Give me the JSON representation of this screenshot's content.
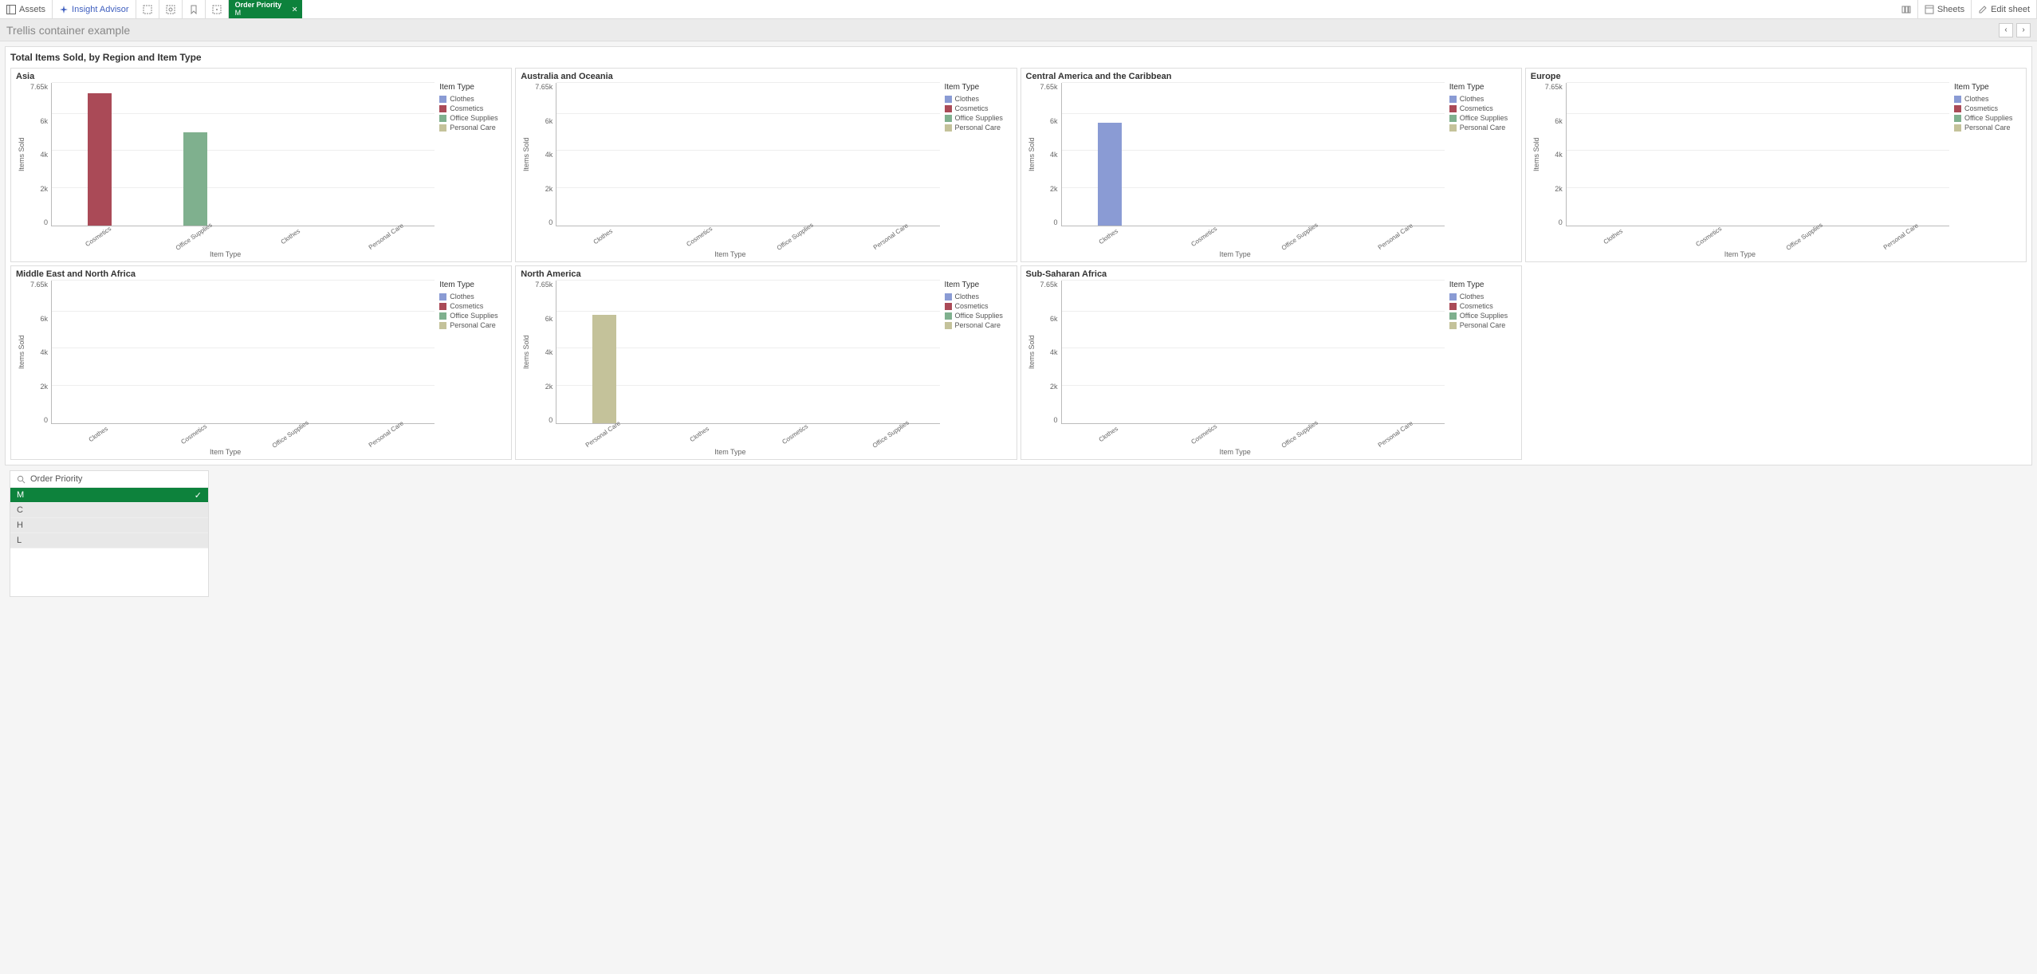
{
  "toolbar": {
    "assets_label": "Assets",
    "insight_label": "Insight Advisor",
    "sheets_label": "Sheets",
    "edit_label": "Edit sheet",
    "filter_tab": {
      "title": "Order Priority",
      "value": "M"
    }
  },
  "sheet": {
    "title": "Trellis container example"
  },
  "trellis": {
    "title": "Total Items Sold, by Region and Item Type",
    "yaxis_label": "Items Sold",
    "xaxis_label": "Item Type",
    "ymax": 7650,
    "yticks": [
      "7.65k",
      "6k",
      "4k",
      "2k",
      "0"
    ],
    "ytick_values": [
      7650,
      6000,
      4000,
      2000,
      0
    ],
    "legend_title": "Item Type",
    "legend_items": [
      {
        "label": "Clothes",
        "color": "#8a9bd4"
      },
      {
        "label": "Cosmetics",
        "color": "#aa4a57"
      },
      {
        "label": "Office Supplies",
        "color": "#7fb08e"
      },
      {
        "label": "Personal Care",
        "color": "#c4c29a"
      }
    ],
    "panels": [
      {
        "title": "Asia",
        "categories": [
          "Cosmetics",
          "Office Supplies",
          "Clothes",
          "Personal Care"
        ],
        "bars": [
          {
            "category": "Cosmetics",
            "value": 7100,
            "color": "#aa4a57"
          },
          {
            "category": "Office Supplies",
            "value": 5000,
            "color": "#7fb08e"
          }
        ]
      },
      {
        "title": "Australia and Oceania",
        "categories": [
          "Clothes",
          "Cosmetics",
          "Office Supplies",
          "Personal Care"
        ],
        "bars": []
      },
      {
        "title": "Central America and the Caribbean",
        "categories": [
          "Clothes",
          "Cosmetics",
          "Office Supplies",
          "Personal Care"
        ],
        "bars": [
          {
            "category": "Clothes",
            "value": 5500,
            "color": "#8a9bd4"
          }
        ]
      },
      {
        "title": "Europe",
        "categories": [
          "Clothes",
          "Cosmetics",
          "Office Supplies",
          "Personal Care"
        ],
        "bars": []
      },
      {
        "title": "Middle East and North Africa",
        "categories": [
          "Clothes",
          "Cosmetics",
          "Office Supplies",
          "Personal Care"
        ],
        "bars": []
      },
      {
        "title": "North America",
        "categories": [
          "Personal Care",
          "Clothes",
          "Cosmetics",
          "Office Supplies"
        ],
        "bars": [
          {
            "category": "Personal Care",
            "value": 5800,
            "color": "#c4c29a"
          }
        ]
      },
      {
        "title": "Sub-Saharan Africa",
        "categories": [
          "Clothes",
          "Cosmetics",
          "Office Supplies",
          "Personal Care"
        ],
        "bars": []
      }
    ]
  },
  "filterpane": {
    "title": "Order Priority",
    "items": [
      {
        "label": "M",
        "state": "selected"
      },
      {
        "label": "C",
        "state": "alt"
      },
      {
        "label": "H",
        "state": "alt"
      },
      {
        "label": "L",
        "state": "alt"
      }
    ]
  }
}
